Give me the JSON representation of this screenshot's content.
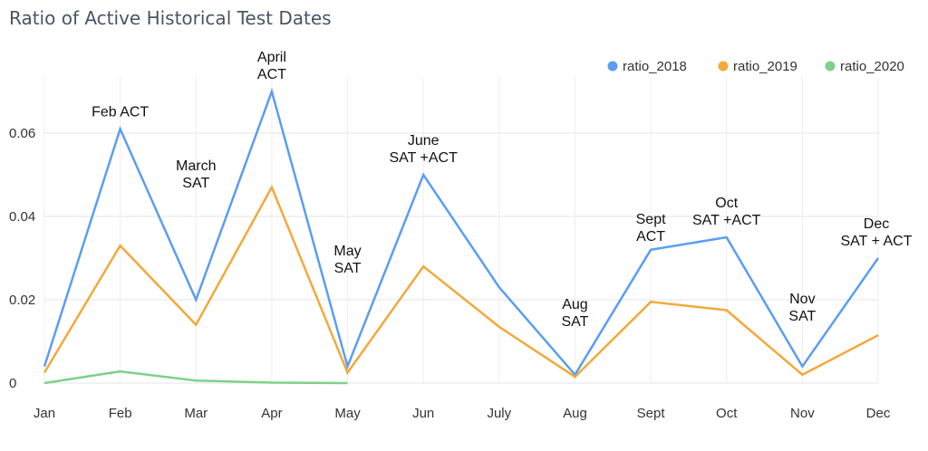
{
  "chart_data": {
    "type": "line",
    "title": "Ratio of Active Historical Test Dates",
    "categories": [
      "Jan",
      "Feb",
      "Mar",
      "Apr",
      "May",
      "Jun",
      "July",
      "Aug",
      "Sept",
      "Oct",
      "Nov",
      "Dec"
    ],
    "ylim": [
      0,
      0.07
    ],
    "yticks": [
      0,
      0.02,
      0.04,
      0.06
    ],
    "ytick_labels": [
      "0",
      "0.02",
      "0.04",
      "0.06"
    ],
    "grid": true,
    "legend_position": "top-right",
    "series": [
      {
        "name": "ratio_2018",
        "color": "#5b9ef0",
        "values": [
          0.004,
          0.061,
          0.02,
          0.07,
          0.004,
          0.05,
          0.023,
          0.002,
          0.032,
          0.035,
          0.004,
          0.03
        ]
      },
      {
        "name": "ratio_2019",
        "color": "#f2a93b",
        "values": [
          0.0025,
          0.033,
          0.014,
          0.047,
          0.0025,
          0.028,
          0.0135,
          0.0015,
          0.0195,
          0.0175,
          0.002,
          0.0115
        ]
      },
      {
        "name": "ratio_2020",
        "color": "#7fd18b",
        "values": [
          0.0,
          0.0028,
          0.0006,
          0.0001,
          0.0,
          null,
          null,
          null,
          null,
          null,
          null,
          null
        ]
      }
    ],
    "annotations": [
      {
        "category": "Feb",
        "lines": [
          "Feb ACT"
        ]
      },
      {
        "category": "Mar",
        "lines": [
          "March",
          "SAT"
        ]
      },
      {
        "category": "Apr",
        "lines": [
          "April",
          "ACT"
        ]
      },
      {
        "category": "May",
        "lines": [
          "May",
          "SAT"
        ]
      },
      {
        "category": "Jun",
        "lines": [
          "June",
          "SAT +ACT"
        ]
      },
      {
        "category": "Aug",
        "lines": [
          "Aug",
          "SAT"
        ]
      },
      {
        "category": "Sept",
        "lines": [
          "Sept",
          "ACT"
        ]
      },
      {
        "category": "Oct",
        "lines": [
          "Oct",
          "SAT +ACT"
        ]
      },
      {
        "category": "Nov",
        "lines": [
          "Nov",
          "SAT"
        ]
      },
      {
        "category": "Dec",
        "lines": [
          "Dec",
          "SAT + ACT"
        ]
      }
    ]
  }
}
